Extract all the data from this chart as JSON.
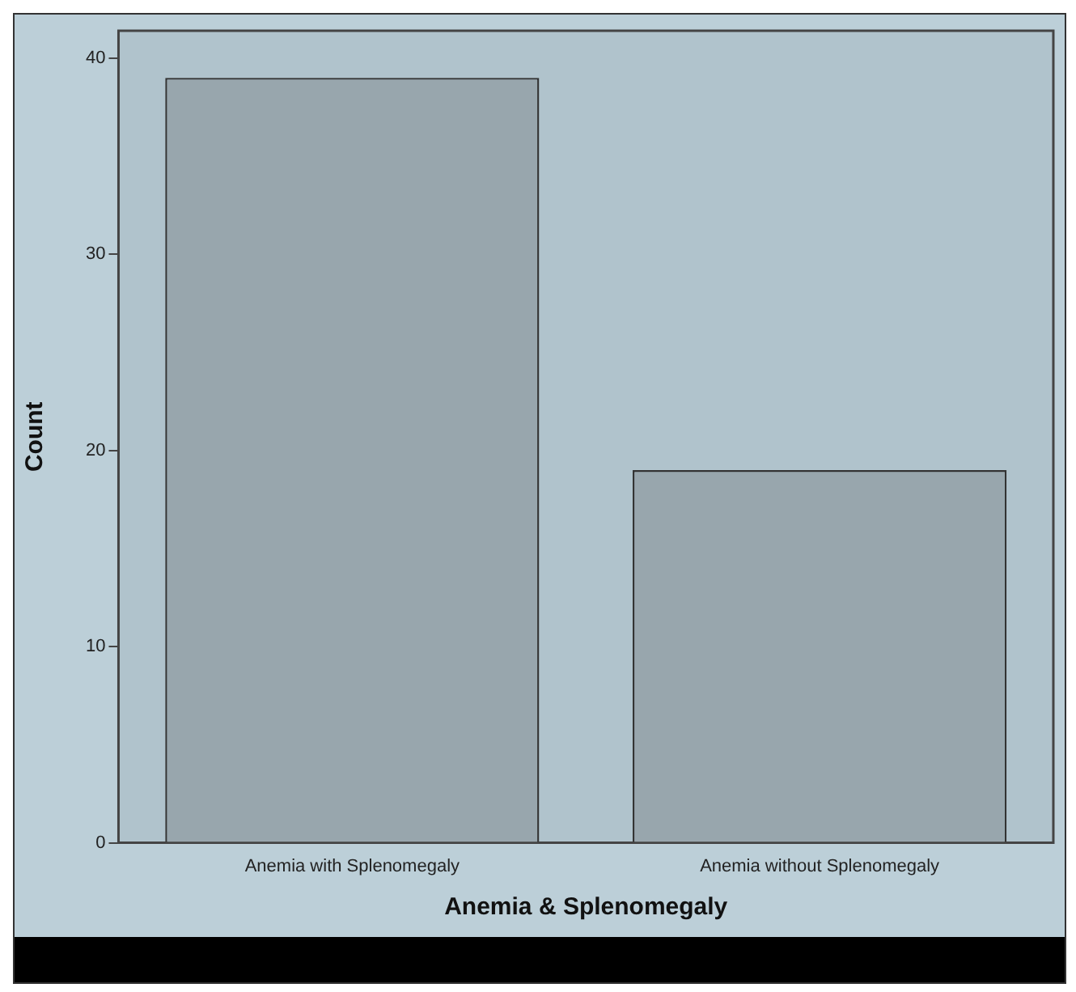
{
  "chart_data": {
    "type": "bar",
    "xlabel": "Anemia & Splenomegaly",
    "ylabel": "Count",
    "categories": [
      "Anemia with Splenomegaly",
      "Anemia without Splenomegaly"
    ],
    "values": [
      39,
      19
    ],
    "color": "#98a6ad",
    "ylim": [
      0,
      41.4
    ],
    "yticks": [
      0,
      10,
      20,
      30,
      40
    ],
    "grid": false,
    "legend": false
  }
}
